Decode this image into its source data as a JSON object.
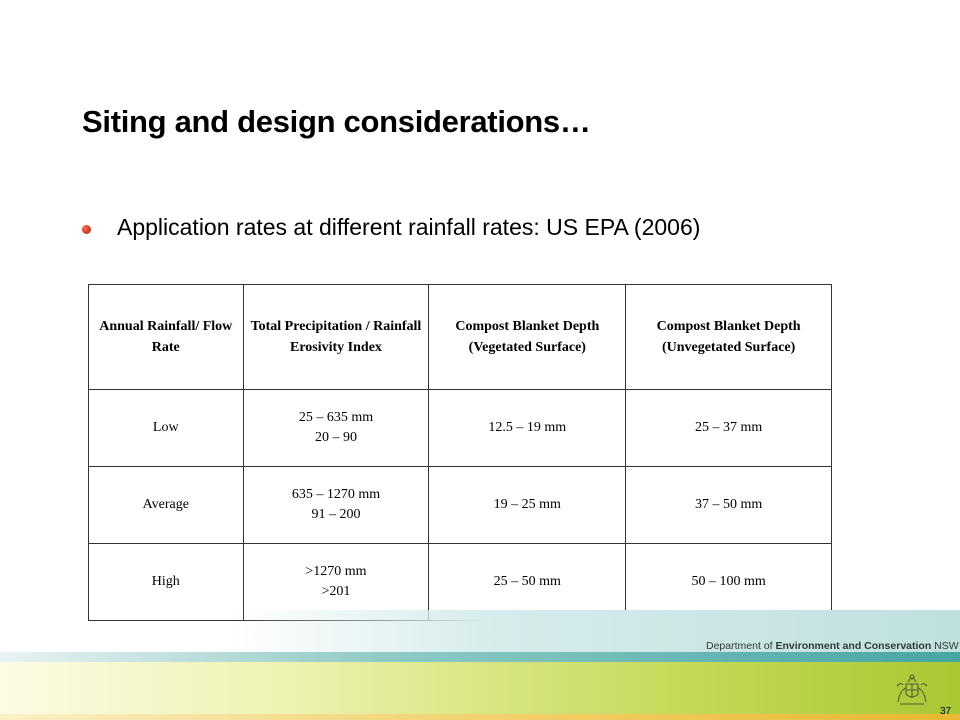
{
  "slide": {
    "title": "Siting and design considerations…",
    "bullet": "Application rates at different rainfall rates: US EPA (2006)"
  },
  "table": {
    "headers": [
      "Annual Rainfall/ Flow Rate",
      "Total Precipitation / Rainfall Erosivity Index",
      "Compost Blanket Depth (Vegetated Surface)",
      "Compost Blanket Depth (Unvegetated Surface)"
    ],
    "rows": [
      {
        "rate": "Low",
        "precip_mm": "25 – 635 mm",
        "erosivity": "20 – 90",
        "vegetated": "12.5 – 19 mm",
        "unvegetated": "25 – 37 mm"
      },
      {
        "rate": "Average",
        "precip_mm": "635 – 1270 mm",
        "erosivity": "91 – 200",
        "vegetated": "19 – 25 mm",
        "unvegetated": "37 – 50 mm"
      },
      {
        "rate": "High",
        "precip_mm": ">1270 mm",
        "erosivity": ">201",
        "vegetated": "25 – 50 mm",
        "unvegetated": "50 – 100 mm"
      }
    ]
  },
  "footer": {
    "dept_prefix": "Department of",
    "dept_bold": "Environment and Conservation",
    "dept_suffix": "NSW",
    "crest_icon": "nsw-coat-of-arms-icon",
    "page_number": "37"
  },
  "colors": {
    "bullet": "#c0200a",
    "teal_band": "#47a6a2",
    "green_band": "#a8c832"
  }
}
